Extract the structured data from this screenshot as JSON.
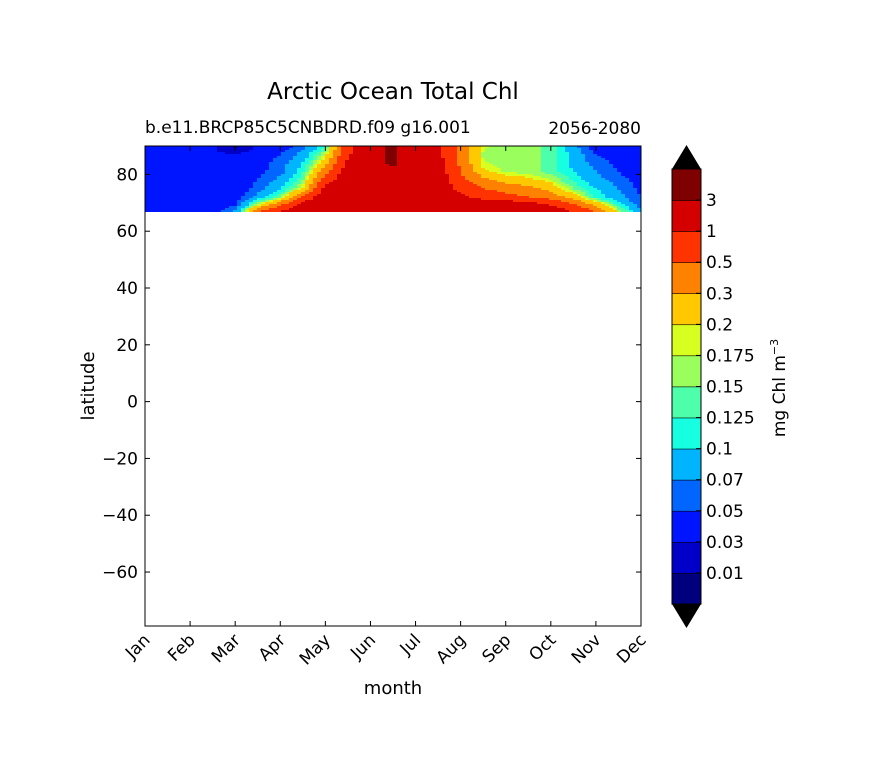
{
  "chart_data": {
    "type": "heatmap",
    "title": "Arctic Ocean Total Chl",
    "subtitle_left": "b.e11.BRCP85C5CNBDRD.f09 g16.001",
    "subtitle_right": "2056-2080",
    "xlabel": "month",
    "ylabel": "latitude",
    "x_categories": [
      "Jan",
      "Feb",
      "Mar",
      "Apr",
      "May",
      "Jun",
      "Jul",
      "Aug",
      "Sep",
      "Oct",
      "Nov",
      "Dec"
    ],
    "xlim": [
      0,
      11
    ],
    "ylim": [
      -79,
      90
    ],
    "y_ticks": [
      -60,
      -40,
      -20,
      0,
      20,
      40,
      60,
      80
    ],
    "y_tick_labels": [
      "−60",
      "−40",
      "−20",
      "0",
      "20",
      "40",
      "60",
      "80"
    ],
    "data_lat_range": [
      66.5,
      90
    ],
    "colorbar": {
      "label": "mg Chl m",
      "label_superscript": "−3",
      "extend": "both",
      "levels": [
        0.01,
        0.03,
        0.05,
        0.07,
        0.1,
        0.125,
        0.15,
        0.175,
        0.2,
        0.3,
        0.5,
        1,
        3
      ],
      "tick_labels": [
        "0.01",
        "0.03",
        "0.05",
        "0.07",
        "0.1",
        "0.125",
        "0.15",
        "0.175",
        "0.2",
        "0.3",
        "0.5",
        "1",
        "3"
      ],
      "colors": [
        "#00007f",
        "#0000c8",
        "#0015ff",
        "#0066ff",
        "#00b4ff",
        "#16ffe1",
        "#4dffaa",
        "#9aff5c",
        "#d7ff1f",
        "#ffc800",
        "#ff8100",
        "#ff3300",
        "#d40000",
        "#7f0000"
      ]
    },
    "lat_rows": [
      90,
      87,
      84,
      81,
      78,
      75,
      72,
      69,
      66.5
    ],
    "month_x": [
      0,
      0.5,
      1,
      1.5,
      2,
      2.5,
      3,
      3.5,
      4,
      4.5,
      5,
      5.5,
      6,
      6.5,
      7,
      7.5,
      8,
      8.5,
      9,
      9.5,
      10,
      10.5,
      11
    ],
    "chl_grid": [
      [
        0.035,
        0.035,
        0.035,
        0.035,
        0.008,
        0.035,
        0.04,
        0.06,
        0.12,
        0.8,
        2.0,
        3.5,
        1.8,
        1.2,
        0.45,
        0.18,
        0.16,
        0.16,
        0.14,
        0.08,
        0.04,
        0.04,
        0.04
      ],
      [
        0.035,
        0.035,
        0.035,
        0.035,
        0.035,
        0.04,
        0.05,
        0.08,
        0.18,
        0.9,
        2.0,
        3.5,
        1.8,
        1.2,
        0.45,
        0.17,
        0.16,
        0.16,
        0.14,
        0.09,
        0.05,
        0.04,
        0.04
      ],
      [
        0.035,
        0.035,
        0.035,
        0.035,
        0.035,
        0.04,
        0.06,
        0.1,
        0.25,
        1.2,
        2.0,
        3.6,
        1.8,
        1.3,
        0.45,
        0.18,
        0.16,
        0.16,
        0.14,
        0.09,
        0.06,
        0.045,
        0.035
      ],
      [
        0.035,
        0.035,
        0.035,
        0.035,
        0.035,
        0.045,
        0.06,
        0.12,
        0.4,
        1.5,
        2.0,
        2.5,
        1.8,
        1.5,
        0.5,
        0.22,
        0.17,
        0.16,
        0.14,
        0.1,
        0.07,
        0.05,
        0.035
      ],
      [
        0.035,
        0.035,
        0.035,
        0.035,
        0.035,
        0.05,
        0.08,
        0.15,
        0.7,
        1.8,
        2.0,
        2.0,
        1.8,
        1.6,
        0.6,
        0.35,
        0.25,
        0.22,
        0.18,
        0.12,
        0.08,
        0.06,
        0.04
      ],
      [
        0.035,
        0.035,
        0.035,
        0.035,
        0.035,
        0.06,
        0.1,
        0.2,
        1.2,
        2.0,
        2.0,
        2.0,
        1.8,
        1.7,
        0.8,
        0.5,
        0.4,
        0.35,
        0.25,
        0.15,
        0.1,
        0.07,
        0.045
      ],
      [
        0.035,
        0.035,
        0.035,
        0.035,
        0.04,
        0.08,
        0.15,
        0.6,
        1.6,
        2.0,
        2.0,
        2.0,
        1.9,
        1.8,
        1.2,
        0.8,
        0.6,
        0.5,
        0.4,
        0.25,
        0.12,
        0.08,
        0.05
      ],
      [
        0.035,
        0.035,
        0.035,
        0.035,
        0.05,
        0.2,
        0.5,
        1.5,
        2.0,
        2.0,
        2.0,
        2.0,
        2.0,
        2.0,
        2.0,
        2.0,
        2.0,
        1.8,
        1.0,
        0.6,
        0.3,
        0.12,
        0.06
      ],
      [
        0.035,
        0.035,
        0.035,
        0.04,
        0.08,
        0.6,
        1.2,
        2.0,
        2.0,
        2.0,
        2.0,
        2.5,
        2.0,
        2.0,
        2.0,
        2.5,
        3.2,
        3.0,
        2.0,
        1.0,
        0.5,
        0.2,
        0.08
      ]
    ]
  }
}
